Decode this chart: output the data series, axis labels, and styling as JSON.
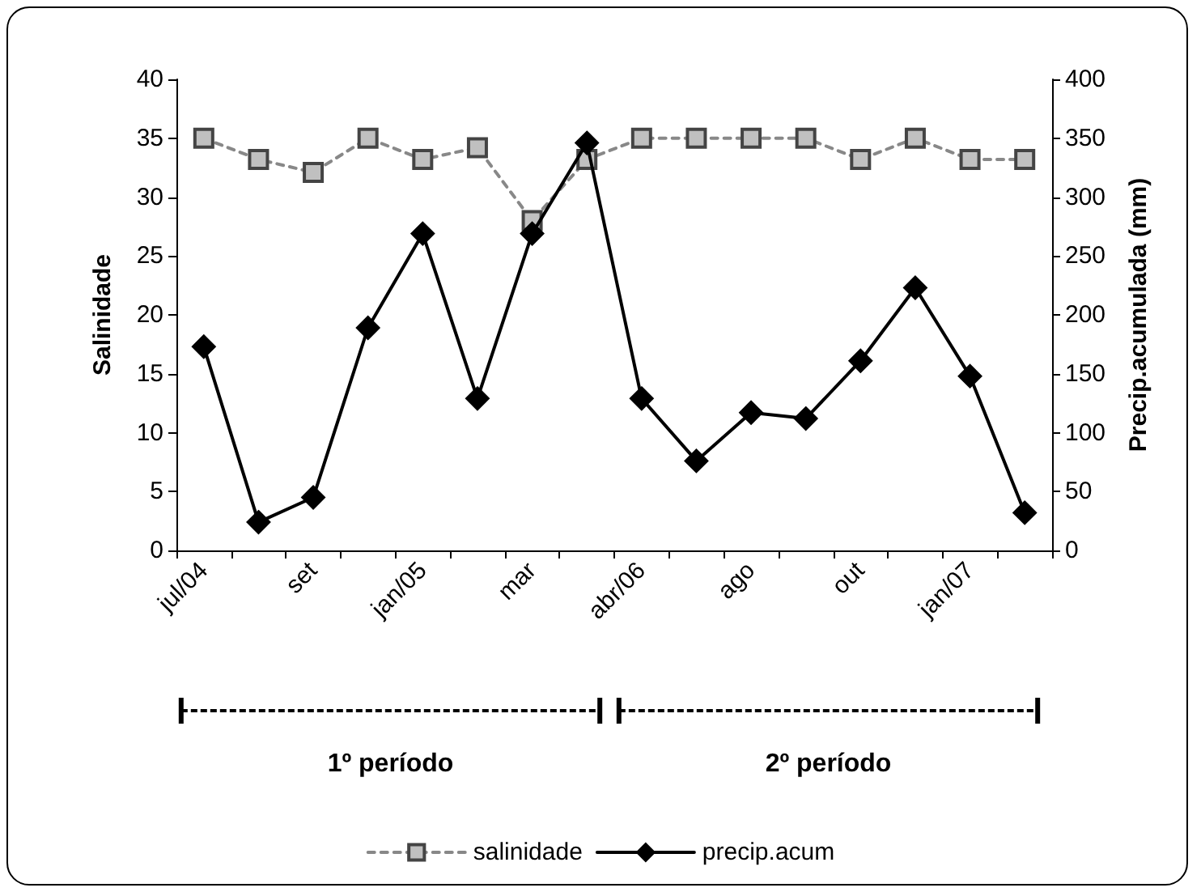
{
  "chart_data": {
    "type": "line",
    "categories": [
      "jul/04",
      null,
      "set",
      null,
      "jan/05",
      null,
      "mar",
      null,
      "abr/06",
      null,
      "ago",
      null,
      "out",
      null,
      "jan/07",
      null
    ],
    "series": [
      {
        "name": "salinidade",
        "color": "#c0c0c0",
        "marker": "square",
        "line_style": "dashed",
        "values": [
          35,
          33.2,
          32.1,
          35,
          33.2,
          34.2,
          28,
          33.2,
          35,
          35,
          35,
          35,
          33.2,
          35,
          33.2,
          33.2
        ]
      },
      {
        "name": "precip.acum",
        "color": "#000000",
        "marker": "diamond",
        "line_style": "solid",
        "axis": "y2",
        "values": [
          173,
          24,
          45,
          189,
          269,
          129,
          269,
          346,
          129,
          76,
          117,
          112,
          161,
          223,
          148,
          32
        ]
      }
    ],
    "ylabel": "Salinidade",
    "y2label": "Precip.acumulada (mm)",
    "ylim": [
      0,
      40
    ],
    "yticks": [
      0,
      5,
      10,
      15,
      20,
      25,
      30,
      35,
      40
    ],
    "y2lim": [
      0,
      400
    ],
    "y2ticks": [
      0,
      50,
      100,
      150,
      200,
      250,
      300,
      350,
      400
    ],
    "annotations": [
      "1º período",
      "2º período"
    ],
    "grid": false,
    "legend": "bottom"
  }
}
